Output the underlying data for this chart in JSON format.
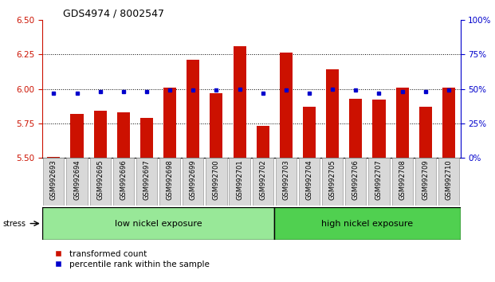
{
  "title": "GDS4974 / 8002547",
  "samples": [
    "GSM992693",
    "GSM992694",
    "GSM992695",
    "GSM992696",
    "GSM992697",
    "GSM992698",
    "GSM992699",
    "GSM992700",
    "GSM992701",
    "GSM992702",
    "GSM992703",
    "GSM992704",
    "GSM992705",
    "GSM992706",
    "GSM992707",
    "GSM992708",
    "GSM992709",
    "GSM992710"
  ],
  "red_values": [
    5.51,
    5.82,
    5.84,
    5.83,
    5.79,
    6.01,
    6.21,
    5.97,
    6.31,
    5.73,
    6.26,
    5.87,
    6.14,
    5.93,
    5.92,
    6.01,
    5.87,
    6.01
  ],
  "blue_values": [
    47,
    47,
    48,
    48,
    48,
    49,
    49,
    49,
    50,
    47,
    49,
    47,
    50,
    49,
    47,
    48,
    48,
    49
  ],
  "ylim_left": [
    5.5,
    6.5
  ],
  "ylim_right": [
    0,
    100
  ],
  "yticks_left": [
    5.5,
    5.75,
    6.0,
    6.25,
    6.5
  ],
  "yticks_right": [
    0,
    25,
    50,
    75,
    100
  ],
  "grid_lines": [
    5.75,
    6.0,
    6.25
  ],
  "bar_color": "#CC1100",
  "marker_color": "#0000CC",
  "low_group": "low nickel exposure",
  "high_group": "high nickel exposure",
  "low_count": 10,
  "high_count": 8,
  "stress_label": "stress",
  "legend_red": "transformed count",
  "legend_blue": "percentile rank within the sample",
  "low_group_color": "#98E898",
  "high_group_color": "#50D050",
  "left_axis_color": "#CC1100",
  "right_axis_color": "#0000CC",
  "label_box_color": "#D8D8D8",
  "label_box_edge": "#999999"
}
